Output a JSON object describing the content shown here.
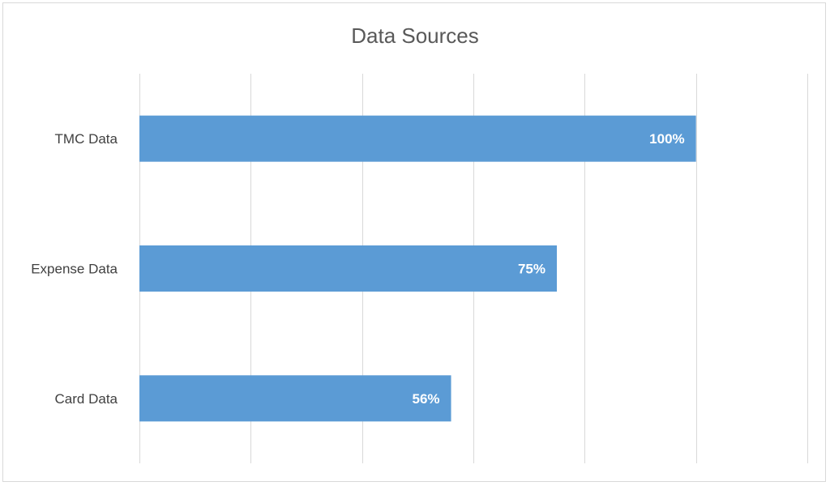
{
  "chart_data": {
    "type": "bar",
    "orientation": "horizontal",
    "title": "Data Sources",
    "categories": [
      "TMC Data",
      "Expense Data",
      "Card Data"
    ],
    "values": [
      100,
      75,
      56
    ],
    "data_labels": [
      "100%",
      "75%",
      "56%"
    ],
    "xlim": [
      0,
      120
    ],
    "grid": true,
    "legend": "none",
    "bar_color": "#5b9bd5"
  }
}
